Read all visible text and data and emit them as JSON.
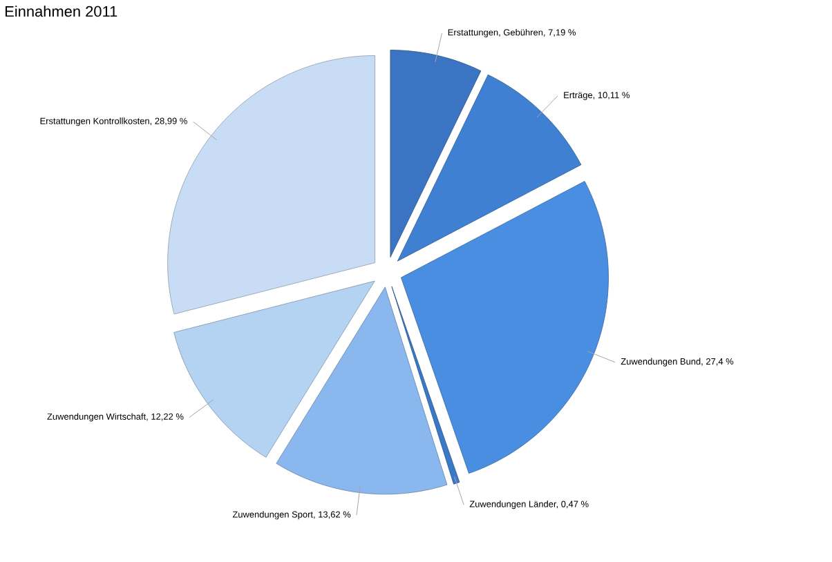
{
  "chart_data": {
    "type": "pie",
    "title": "Einnahmen 2011",
    "categories": [
      "Erstattungen, Gebühren, 7,19 %",
      "Erträge, 10,11 %",
      "Zuwendungen Bund, 27,4 %",
      "Zuwendungen Länder, 0,47 %",
      "Zuwendungen Sport, 13,62 %",
      "Zuwendungen Wirtschaft, 12,22 %",
      "Erstattungen Kontrollkosten, 28,99 %"
    ],
    "values": [
      7.19,
      10.11,
      27.4,
      0.47,
      13.62,
      12.22,
      28.99
    ],
    "colors": [
      "#3a74c2",
      "#3f80d2",
      "#4a8ee2",
      "#3a78c8",
      "#8ab8ee",
      "#b4d2f2",
      "#c8ddf5"
    ]
  }
}
